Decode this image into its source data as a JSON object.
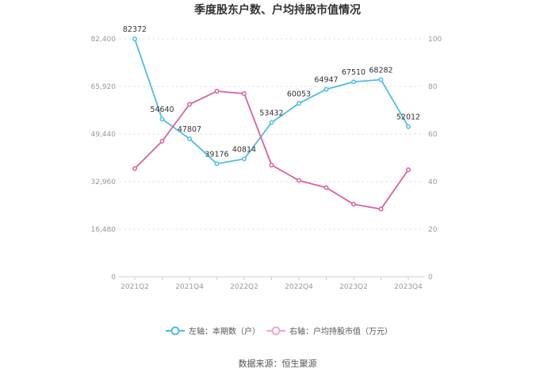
{
  "chart_data": {
    "type": "line",
    "title": "季度股东户数、户均持股市值情况",
    "categories": [
      "2021Q2",
      "2021Q3",
      "2021Q4",
      "2022Q1",
      "2022Q2",
      "2022Q3",
      "2022Q4",
      "2023Q1",
      "2023Q2",
      "2023Q3",
      "2023Q4"
    ],
    "x_tick_labels": [
      "2021Q2",
      "2021Q4",
      "2022Q2",
      "2022Q4",
      "2023Q2",
      "2023Q4"
    ],
    "left_axis": {
      "ticks": [
        "0",
        "16,480",
        "32,960",
        "49,440",
        "65,920",
        "82,400"
      ],
      "ylim": [
        0,
        82400
      ]
    },
    "right_axis": {
      "ticks": [
        "0",
        "20",
        "40",
        "60",
        "80",
        "100"
      ],
      "ylim": [
        0,
        100
      ]
    },
    "series": [
      {
        "name": "左轴：本期数（户）",
        "axis": "left",
        "color": "#4dbde9",
        "values": [
          82372,
          54640,
          47807,
          39176,
          40814,
          53432,
          60053,
          64947,
          67510,
          68282,
          52012
        ],
        "labels": [
          "82372",
          "54640",
          "47807",
          "39176",
          "40814",
          "53432",
          "60053",
          "64947",
          "67510",
          "68282",
          "52012"
        ]
      },
      {
        "name": "右轴：户均持股市值（万元）",
        "axis": "right",
        "color": "#d9609f",
        "values": [
          45.5,
          57,
          72.5,
          78,
          77,
          47,
          40.5,
          37.5,
          30.5,
          28.5,
          45
        ]
      }
    ],
    "grid": true,
    "legend": "bottom"
  },
  "source_text": "数据来源：恒生聚源"
}
